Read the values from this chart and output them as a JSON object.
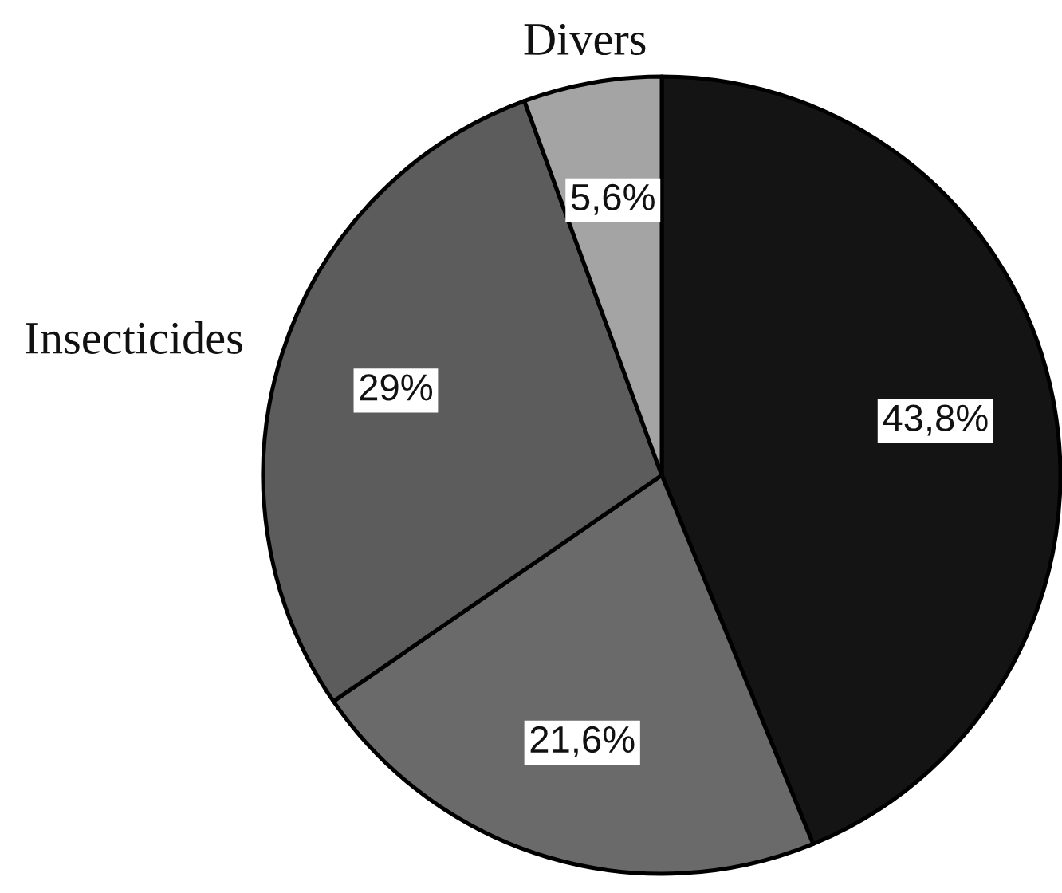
{
  "chart_data": {
    "type": "pie",
    "categories": [
      null,
      null,
      "Insecticides",
      "Divers"
    ],
    "values": [
      43.8,
      21.6,
      29,
      5.6
    ],
    "colors": [
      "#141414",
      "#6a6a6a",
      "#5c5c5c",
      "#a4a4a4"
    ],
    "value_labels": [
      "43,8%",
      "21,6%",
      "29%",
      "5,6%"
    ]
  }
}
